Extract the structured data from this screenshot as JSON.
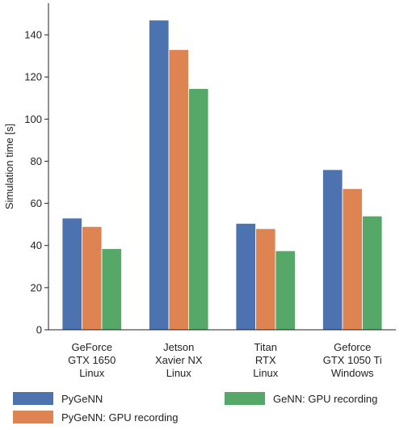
{
  "chart_data": {
    "type": "bar",
    "title": "",
    "xlabel": "",
    "ylabel": "Simulation time [s]",
    "ylim": [
      0,
      155
    ],
    "yticks": [
      0,
      20,
      40,
      60,
      80,
      100,
      120,
      140
    ],
    "grid": false,
    "legend_position": "bottom",
    "categories": [
      [
        "GeForce",
        "GTX 1650",
        "Linux"
      ],
      [
        "Jetson",
        "Xavier NX",
        "Linux"
      ],
      [
        "Titan",
        "RTX",
        "Linux"
      ],
      [
        "Geforce",
        "GTX 1050 Ti",
        "Windows"
      ]
    ],
    "series": [
      {
        "name": "PyGeNN",
        "color": "#4c72b0",
        "values": [
          53,
          147,
          50.5,
          76
        ]
      },
      {
        "name": "PyGeNN: GPU recording",
        "color": "#dd8452",
        "values": [
          49,
          133,
          48,
          67
        ]
      },
      {
        "name": "GeNN: GPU recording",
        "color": "#55a868",
        "values": [
          38.5,
          114.5,
          37.5,
          54
        ]
      }
    ]
  }
}
